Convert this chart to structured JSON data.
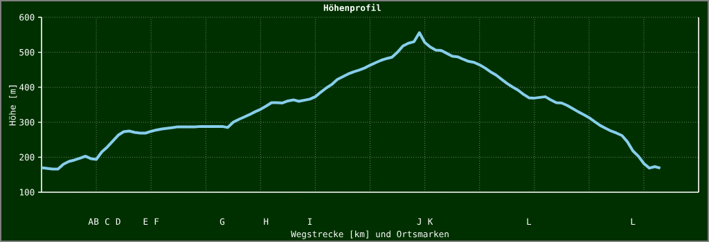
{
  "chart_data": {
    "type": "line",
    "title": "Höhenprofil",
    "xlabel": "Wegstrecke [km] und Ortsmarken",
    "ylabel": "Höhe [m]",
    "categories": [
      null,
      null,
      null,
      null,
      null,
      null,
      null,
      null,
      null,
      "A",
      "B",
      null,
      "C",
      null,
      "D",
      null,
      null,
      null,
      null,
      "E",
      null,
      "F",
      null,
      null,
      null,
      null,
      null,
      null,
      null,
      null,
      null,
      null,
      null,
      "G",
      null,
      null,
      null,
      null,
      null,
      null,
      null,
      "H",
      null,
      null,
      null,
      null,
      null,
      null,
      null,
      "I",
      null,
      null,
      null,
      null,
      null,
      null,
      null,
      null,
      null,
      null,
      null,
      null,
      null,
      null,
      null,
      null,
      null,
      null,
      null,
      "J",
      null,
      "K",
      null,
      null,
      null,
      null,
      null,
      null,
      null,
      null,
      null,
      null,
      null,
      null,
      null,
      null,
      null,
      null,
      null,
      "L",
      null,
      null,
      null,
      null,
      null,
      null,
      null,
      null,
      null,
      null,
      null,
      null,
      null,
      null,
      null,
      null,
      null,
      null,
      "L",
      null,
      null,
      null,
      null,
      null,
      null,
      null,
      null,
      null,
      null,
      null,
      null
    ],
    "values": [
      170,
      168,
      166,
      166,
      180,
      188,
      192,
      197,
      203,
      196,
      194,
      215,
      229,
      246,
      263,
      273,
      275,
      271,
      269,
      269,
      274,
      278,
      281,
      283,
      285,
      287,
      287,
      287,
      287,
      288,
      288,
      288,
      288,
      288,
      285,
      300,
      308,
      315,
      322,
      330,
      337,
      346,
      356,
      356,
      355,
      361,
      364,
      360,
      363,
      366,
      373,
      386,
      398,
      408,
      422,
      430,
      438,
      444,
      449,
      455,
      463,
      470,
      477,
      482,
      486,
      500,
      518,
      526,
      530,
      556,
      528,
      515,
      506,
      505,
      497,
      489,
      487,
      480,
      474,
      471,
      464,
      455,
      444,
      435,
      423,
      411,
      401,
      392,
      380,
      370,
      369,
      371,
      373,
      364,
      356,
      355,
      348,
      339,
      330,
      322,
      313,
      302,
      291,
      283,
      275,
      269,
      262,
      244,
      218,
      203,
      182,
      169,
      173,
      169,
      null,
      null,
      null,
      null,
      null,
      null,
      null
    ],
    "color": "#87ceeb",
    "ylim": [
      100,
      600
    ],
    "yticks": [
      100,
      200,
      300,
      400,
      500,
      600
    ],
    "grid": true,
    "marker": "none",
    "line_style": "solid"
  }
}
